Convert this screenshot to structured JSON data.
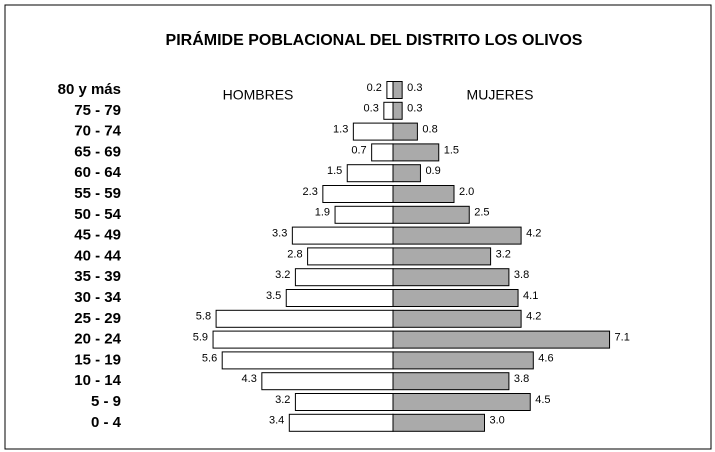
{
  "chart_data": {
    "type": "pyramid",
    "title": "PIRÁMIDE POBLACIONAL DEL DISTRITO LOS OLIVOS",
    "categories": [
      "80 y más",
      "75 - 79",
      "70 - 74",
      "65 - 69",
      "60 - 64",
      "55 - 59",
      "50 - 54",
      "45 - 49",
      "40 - 44",
      "35 - 39",
      "30 - 34",
      "25 - 29",
      "20 - 24",
      "15 - 19",
      "10 - 14",
      "5 - 9",
      "0 - 4"
    ],
    "series": [
      {
        "name": "HOMBRES",
        "color": "#ffffff",
        "side": "left",
        "values": [
          0.2,
          0.3,
          1.3,
          0.7,
          1.5,
          2.3,
          1.9,
          3.3,
          2.8,
          3.2,
          3.5,
          5.8,
          5.9,
          5.6,
          4.3,
          3.2,
          3.4
        ]
      },
      {
        "name": "MUJERES",
        "color": "#aaaaaa",
        "side": "right",
        "values": [
          0.3,
          0.3,
          0.8,
          1.5,
          0.9,
          2,
          2.5,
          4.2,
          3.2,
          3.8,
          4.1,
          4.2,
          7.1,
          4.6,
          3.8,
          4.5,
          3
        ],
        "value_labels": [
          "0.3",
          "0.3",
          "0.8",
          "1.5",
          "0.9",
          "2.0",
          "2.5",
          "4.2",
          "3.2",
          "3.8",
          "4.1",
          "4.2",
          "7.1",
          "4.6",
          "3.8",
          "4.5",
          "3.0"
        ]
      }
    ]
  }
}
